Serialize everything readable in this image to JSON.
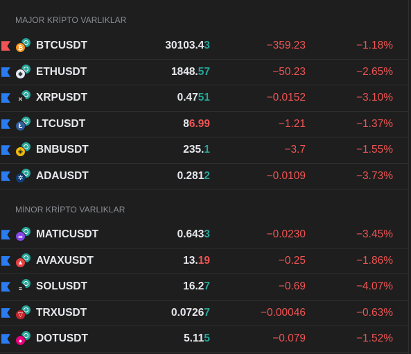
{
  "sections": [
    {
      "title": "MAJOR KRİPTO VARLIKLAR",
      "rows": [
        {
          "symbol": "BTCUSDT",
          "price_main": "30103.4",
          "price_tail": "3",
          "tail_color": "green",
          "change": "−359.23",
          "pct": "−1.18%",
          "flag": "red",
          "coin_color": "#f7931a",
          "coin_glyph": "₿",
          "icon": "bitcoin-icon"
        },
        {
          "symbol": "ETHUSDT",
          "price_main": "1848.",
          "price_tail": "57",
          "tail_color": "green",
          "change": "−50.23",
          "pct": "−2.65%",
          "flag": "blue",
          "coin_color": "#e8eaf6",
          "coin_glyph": "◆",
          "icon": "ethereum-icon"
        },
        {
          "symbol": "XRPUSDT",
          "price_main": "0.47",
          "price_tail": "51",
          "tail_color": "green",
          "change": "−0.0152",
          "pct": "−3.10%",
          "flag": "blue",
          "coin_color": "#1e1e1e",
          "coin_glyph": "✕",
          "icon": "xrp-icon"
        },
        {
          "symbol": "LTCUSDT",
          "price_main": "8",
          "price_tail": "6.99",
          "tail_color": "red",
          "change": "−1.21",
          "pct": "−1.37%",
          "flag": "blue",
          "coin_color": "#345d9d",
          "coin_glyph": "Ł",
          "icon": "litecoin-icon"
        },
        {
          "symbol": "BNBUSDT",
          "price_main": "235.",
          "price_tail": "1",
          "tail_color": "green",
          "change": "−3.7",
          "pct": "−1.55%",
          "flag": "blue",
          "coin_color": "#f0b90b",
          "coin_glyph": "◈",
          "icon": "bnb-icon"
        },
        {
          "symbol": "ADAUSDT",
          "price_main": "0.281",
          "price_tail": "2",
          "tail_color": "green",
          "change": "−0.0109",
          "pct": "−3.73%",
          "flag": "blue",
          "coin_color": "#0d3e7a",
          "coin_glyph": "✲",
          "icon": "cardano-icon"
        }
      ]
    },
    {
      "title": "MİNOR KRİPTO VARLIKLAR",
      "rows": [
        {
          "symbol": "MATICUSDT",
          "price_main": "0.643",
          "price_tail": "3",
          "tail_color": "green",
          "change": "−0.0230",
          "pct": "−3.45%",
          "flag": "blue",
          "coin_color": "#8247e5",
          "coin_glyph": "∞",
          "icon": "polygon-icon"
        },
        {
          "symbol": "AVAXUSDT",
          "price_main": "13.",
          "price_tail": "19",
          "tail_color": "red",
          "change": "−0.25",
          "pct": "−1.86%",
          "flag": "blue",
          "coin_color": "#e84142",
          "coin_glyph": "▲",
          "icon": "avalanche-icon"
        },
        {
          "symbol": "SOLUSDT",
          "price_main": "16.2",
          "price_tail": "7",
          "tail_color": "green",
          "change": "−0.69",
          "pct": "−4.07%",
          "flag": "blue",
          "coin_color": "#1e1e1e",
          "coin_glyph": "≡",
          "icon": "solana-icon"
        },
        {
          "symbol": "TRXUSDT",
          "price_main": "0.0726",
          "price_tail": "7",
          "tail_color": "green",
          "change": "−0.00046",
          "pct": "−0.63%",
          "flag": "blue",
          "coin_color": "#c4272d",
          "coin_glyph": "▽",
          "icon": "tron-icon"
        },
        {
          "symbol": "DOTUSDT",
          "price_main": "5.11",
          "price_tail": "5",
          "tail_color": "green",
          "change": "−0.079",
          "pct": "−1.52%",
          "flag": "blue",
          "coin_color": "#e6007a",
          "coin_glyph": "●",
          "icon": "polkadot-icon"
        }
      ]
    }
  ],
  "colors": {
    "up": "#26a69a",
    "down": "#f05454",
    "flag_red": "#f05454",
    "flag_blue": "#2a7cf0"
  }
}
